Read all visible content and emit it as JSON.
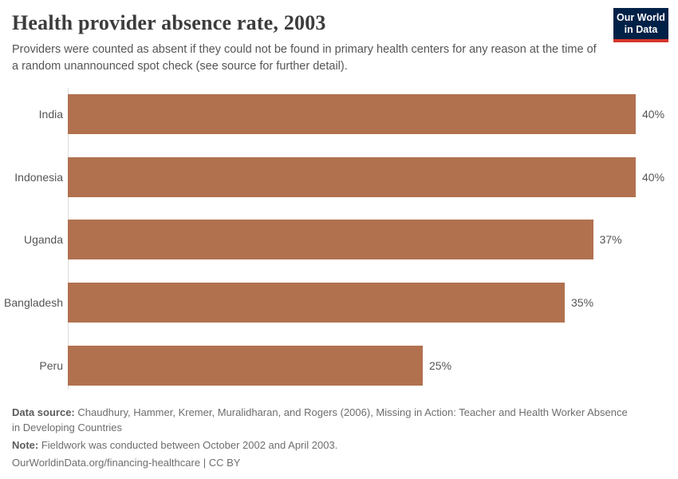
{
  "header": {
    "title": "Health provider absence rate, 2003",
    "subtitle": "Providers were counted as absent if they could not be found in primary health centers for any reason at the time of a random unannounced spot check (see source for further detail).",
    "logo": {
      "line1": "Our World",
      "line2": "in Data"
    }
  },
  "chart_data": {
    "type": "bar",
    "orientation": "horizontal",
    "title": "Health provider absence rate, 2003",
    "categories": [
      "India",
      "Indonesia",
      "Uganda",
      "Bangladesh",
      "Peru"
    ],
    "values": [
      40,
      40,
      37,
      35,
      25
    ],
    "value_labels": [
      "40%",
      "40%",
      "37%",
      "35%",
      "25%"
    ],
    "unit": "%",
    "xlim": [
      0,
      41.3
    ],
    "grid": false,
    "legend": "none",
    "bar_color": "#B1714F",
    "axis_line_color": "#dddddd"
  },
  "footer": {
    "source_label": "Data source:",
    "source_text": "Chaudhury, Hammer, Kremer, Muralidharan, and Rogers (2006), Missing in Action: Teacher and Health Worker Absence in Developing Countries",
    "note_label": "Note:",
    "note_text": "Fieldwork was conducted between October 2002 and April 2003.",
    "url": "OurWorldinData.org/financing-healthcare",
    "separator": "|",
    "license": "CC BY"
  },
  "colors": {
    "bar": "#B1714F",
    "logo_bg": "#002147",
    "logo_accent": "#D5352B",
    "title_text": "#3c3c3c",
    "body_text": "#555555",
    "footer_text": "#6e6e6e",
    "axis_line": "#dddddd"
  }
}
